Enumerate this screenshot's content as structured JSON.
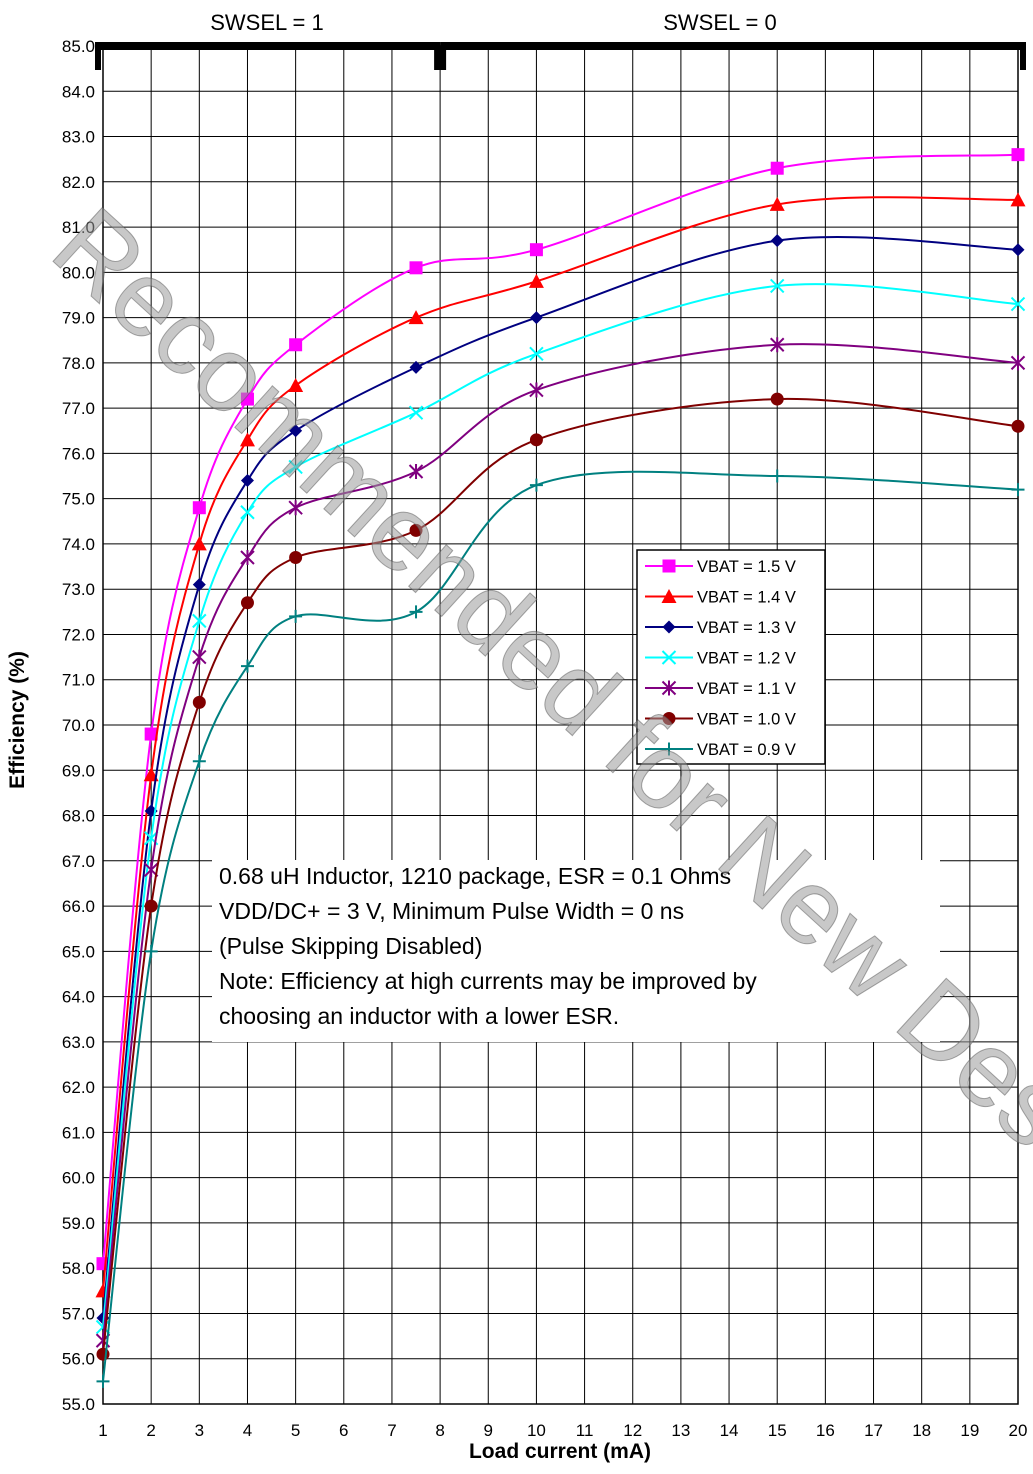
{
  "chart_data": {
    "type": "line",
    "title": "",
    "xlabel": "Load current (mA)",
    "ylabel": "Efficiency (%)",
    "xlim": [
      1,
      20
    ],
    "ylim": [
      55.0,
      85.0
    ],
    "x_ticks": [
      1,
      2,
      3,
      4,
      5,
      6,
      7,
      8,
      9,
      10,
      11,
      12,
      13,
      14,
      15,
      16,
      17,
      18,
      19,
      20
    ],
    "y_ticks": [
      55.0,
      56.0,
      57.0,
      58.0,
      59.0,
      60.0,
      61.0,
      62.0,
      63.0,
      64.0,
      65.0,
      66.0,
      67.0,
      68.0,
      69.0,
      70.0,
      71.0,
      72.0,
      73.0,
      74.0,
      75.0,
      76.0,
      77.0,
      78.0,
      79.0,
      80.0,
      81.0,
      82.0,
      83.0,
      84.0,
      85.0
    ],
    "grid": true,
    "legend_position": "center-right",
    "x": [
      1,
      2,
      3,
      4,
      5,
      7.5,
      10,
      15,
      20
    ],
    "series": [
      {
        "name": "VBAT = 1.5 V",
        "color": "#FF00FF",
        "marker": "square",
        "values": [
          58.1,
          69.8,
          74.8,
          77.2,
          78.4,
          80.1,
          80.5,
          82.3,
          82.6
        ]
      },
      {
        "name": "VBAT = 1.4 V",
        "color": "#FF0000",
        "marker": "triangle",
        "values": [
          57.5,
          68.9,
          74.0,
          76.3,
          77.5,
          79.0,
          79.8,
          81.5,
          81.6
        ]
      },
      {
        "name": "VBAT = 1.3 V",
        "color": "#000080",
        "marker": "diamond",
        "values": [
          56.9,
          68.1,
          73.1,
          75.4,
          76.5,
          77.9,
          79.0,
          80.7,
          80.5
        ]
      },
      {
        "name": "VBAT = 1.2 V",
        "color": "#00FFFF",
        "marker": "x",
        "values": [
          56.7,
          67.5,
          72.3,
          74.7,
          75.7,
          76.9,
          78.2,
          79.7,
          79.3
        ]
      },
      {
        "name": "VBAT = 1.1 V",
        "color": "#800080",
        "marker": "star",
        "values": [
          56.4,
          66.8,
          71.5,
          73.7,
          74.8,
          75.6,
          77.4,
          78.4,
          78.0
        ]
      },
      {
        "name": "VBAT = 1.0 V",
        "color": "#800000",
        "marker": "circle",
        "values": [
          56.1,
          66.0,
          70.5,
          72.7,
          73.7,
          74.3,
          76.3,
          77.2,
          76.6
        ]
      },
      {
        "name": "VBAT = 0.9 V",
        "color": "#008080",
        "marker": "plus",
        "values": [
          55.5,
          65.0,
          69.2,
          71.3,
          72.4,
          72.5,
          75.3,
          75.5,
          75.2
        ]
      }
    ],
    "regions": [
      {
        "label": "SWSEL = 1",
        "from": 1,
        "to": 8
      },
      {
        "label": "SWSEL = 0",
        "from": 8,
        "to": 20
      }
    ],
    "annotation_lines": [
      "0.68 uH Inductor, 1210 package, ESR = 0.1 Ohms",
      "VDD/DC+ = 3 V, Minimum Pulse Width = 0 ns",
      "(Pulse Skipping Disabled)",
      "Note: Efficiency at high currents may be improved by",
      "choosing an inductor with a lower ESR."
    ],
    "watermark": "Recommended for New Designs"
  }
}
